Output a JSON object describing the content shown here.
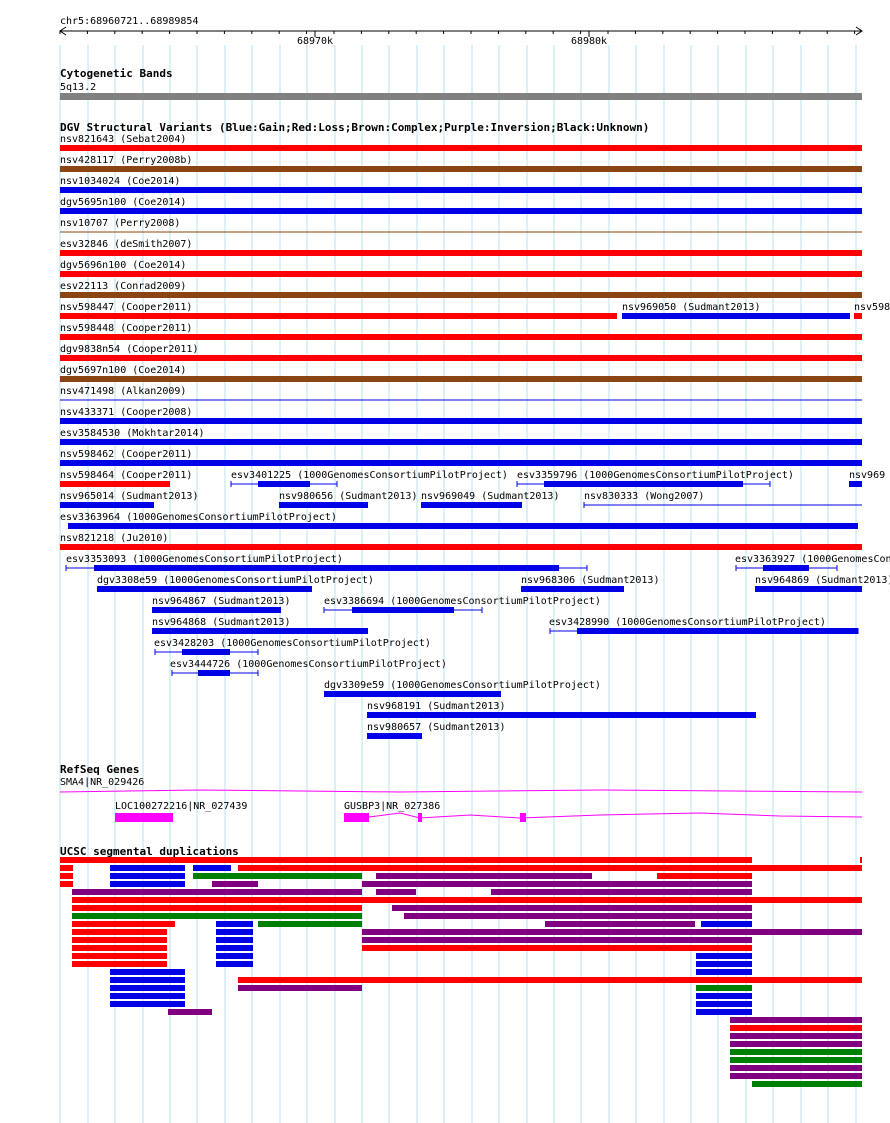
{
  "ruler": {
    "coords": "chr5:68960721..68989854",
    "ticks": [
      "68970k",
      "68980k"
    ]
  },
  "cytoband": {
    "title": "Cytogenetic Bands",
    "band": "5q13.2",
    "color": "#808080"
  },
  "dgv": {
    "title": "DGV Structural Variants (Blue:Gain;Red:Loss;Brown:Complex;Purple:Inversion;Black:Unknown)",
    "colors": {
      "red": "#ff0000",
      "blue": "#0000e6",
      "brown": "#8b4513",
      "purple": "#800080",
      "black": "#000000"
    },
    "rows": [
      [
        {
          "label": "nsv821643 (Sebat2004)",
          "color": "red"
        }
      ],
      [
        {
          "label": "nsv428117 (Perry2008b)",
          "color": "brown"
        }
      ],
      [
        {
          "label": "nsv1034024 (Coe2014)",
          "color": "blue"
        }
      ],
      [
        {
          "label": "dgv5695n100 (Coe2014)",
          "color": "blue"
        }
      ],
      [
        {
          "label": "nsv10707 (Perry2008)",
          "color": "brown",
          "thin": true
        }
      ],
      [
        {
          "label": "esv32846 (deSmith2007)",
          "color": "red"
        }
      ],
      [
        {
          "label": "dgv5696n100 (Coe2014)",
          "color": "red"
        }
      ],
      [
        {
          "label": "esv22113 (Conrad2009)",
          "color": "brown"
        }
      ],
      [
        {
          "label": "nsv598447 (Cooper2011)",
          "color": "red"
        },
        {
          "label": "nsv969050 (Sudmant2013)",
          "color": "blue"
        },
        {
          "label": "nsv598",
          "color": "red"
        }
      ],
      [
        {
          "label": "nsv598448 (Cooper2011)",
          "color": "red"
        }
      ],
      [
        {
          "label": "dgv9838n54 (Cooper2011)",
          "color": "red"
        }
      ],
      [
        {
          "label": "dgv5697n100 (Coe2014)",
          "color": "brown"
        }
      ],
      [
        {
          "label": "nsv471498 (Alkan2009)",
          "color": "blue",
          "thin": true
        }
      ],
      [
        {
          "label": "nsv433371 (Cooper2008)",
          "color": "blue"
        }
      ],
      [
        {
          "label": "esv3584530 (Mokhtar2014)",
          "color": "blue"
        }
      ],
      [
        {
          "label": "nsv598462 (Cooper2011)",
          "color": "blue"
        }
      ],
      [
        {
          "label": "nsv598464 (Cooper2011)",
          "color": "red"
        },
        {
          "label": "esv3401225 (1000GenomesConsortiumPilotProject)",
          "color": "blue"
        },
        {
          "label": "esv3359796 (1000GenomesConsortiumPilotProject)",
          "color": "blue"
        },
        {
          "label": "nsv969",
          "color": "blue"
        }
      ],
      [
        {
          "label": "nsv965014 (Sudmant2013)",
          "color": "blue"
        },
        {
          "label": "nsv980656 (Sudmant2013)",
          "color": "blue"
        },
        {
          "label": "nsv969049 (Sudmant2013)",
          "color": "blue"
        },
        {
          "label": "nsv830333 (Wong2007)",
          "color": "blue"
        }
      ],
      [
        {
          "label": "esv3363964 (1000GenomesConsortiumPilotProject)",
          "color": "blue"
        }
      ],
      [
        {
          "label": "nsv821218 (Ju2010)",
          "color": "red"
        }
      ],
      [
        {
          "label": "esv3353093 (1000GenomesConsortiumPilotProject)",
          "color": "blue"
        },
        {
          "label": "esv3363927 (1000GenomesCon",
          "color": "blue"
        }
      ],
      [
        {
          "label": "dgv3308e59 (1000GenomesConsortiumPilotProject)",
          "color": "blue"
        },
        {
          "label": "nsv968306 (Sudmant2013)",
          "color": "blue"
        },
        {
          "label": "nsv964869 (Sudmant2013)",
          "color": "blue"
        }
      ],
      [
        {
          "label": "nsv964867 (Sudmant2013)",
          "color": "blue"
        },
        {
          "label": "esv3386694 (1000GenomesConsortiumPilotProject)",
          "color": "blue"
        }
      ],
      [
        {
          "label": "nsv964868 (Sudmant2013)",
          "color": "blue"
        },
        {
          "label": "esv3428990 (1000GenomesConsortiumPilotProject)",
          "color": "blue"
        }
      ],
      [
        {
          "label": "esv3428203 (1000GenomesConsortiumPilotProject)",
          "color": "blue"
        }
      ],
      [
        {
          "label": "esv3444726 (1000GenomesConsortiumPilotProject)",
          "color": "blue"
        }
      ],
      [
        {
          "label": "dgv3309e59 (1000GenomesConsortiumPilotProject)",
          "color": "blue"
        }
      ],
      [
        {
          "label": "nsv968191 (Sudmant2013)",
          "color": "blue"
        }
      ],
      [
        {
          "label": "nsv980657 (Sudmant2013)",
          "color": "blue"
        }
      ]
    ]
  },
  "refseq": {
    "title": "RefSeq Genes",
    "color": "#ff00ff",
    "genes": [
      {
        "label": "SMA4|NR_029426"
      },
      {
        "label": "LOC100272216|NR_027439"
      },
      {
        "label": "GUSBP3|NR_027386"
      }
    ]
  },
  "segdups": {
    "title": "UCSC segmental duplications",
    "colors": {
      "red": "#ff0000",
      "blue": "#0000e6",
      "green": "#008000",
      "purple": "#800080"
    }
  }
}
